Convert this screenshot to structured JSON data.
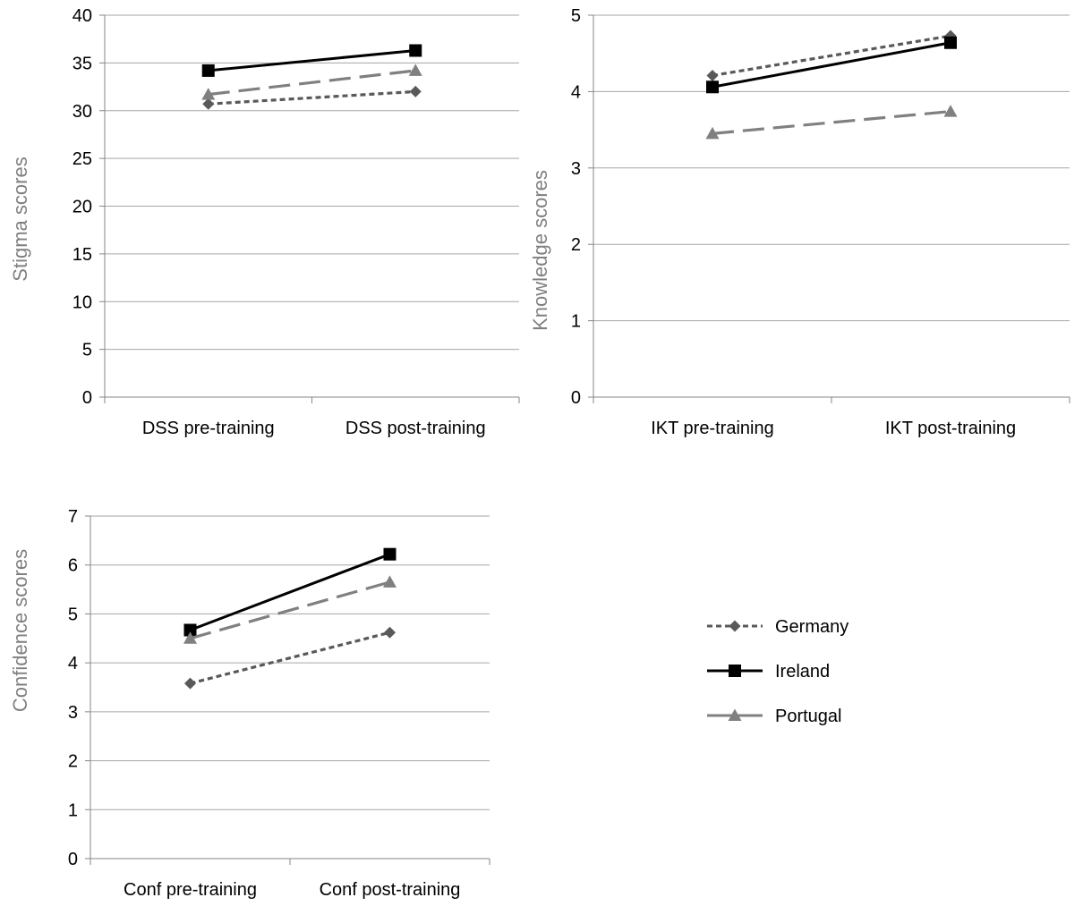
{
  "chart_data": [
    {
      "type": "line",
      "title": "",
      "xlabel": "",
      "ylabel": "Stigma scores",
      "categories": [
        "DSS  pre-training",
        "DSS post-training"
      ],
      "ylim": [
        0,
        40
      ],
      "yticks": [
        "0",
        "5",
        "10",
        "15",
        "20",
        "25",
        "30",
        "35",
        "40"
      ],
      "grid": true,
      "series": [
        {
          "name": "Germany",
          "values": [
            30.7,
            32.0
          ],
          "color": "#595959",
          "dash": "dotted",
          "marker": "diamond"
        },
        {
          "name": "Ireland",
          "values": [
            34.2,
            36.3
          ],
          "color": "#000000",
          "dash": "solid",
          "marker": "square"
        },
        {
          "name": "Portugal",
          "values": [
            31.7,
            34.2
          ],
          "color": "#808080",
          "dash": "long-dash",
          "marker": "triangle"
        }
      ]
    },
    {
      "type": "line",
      "title": "",
      "xlabel": "",
      "ylabel": "Knowledge scores",
      "categories": [
        "IKT pre-training",
        "IKT post-training"
      ],
      "ylim": [
        0,
        5
      ],
      "yticks": [
        "0",
        "1",
        "2",
        "3",
        "4",
        "5"
      ],
      "grid": true,
      "series": [
        {
          "name": "Germany",
          "values": [
            4.21,
            4.73
          ],
          "color": "#595959",
          "dash": "dotted",
          "marker": "diamond"
        },
        {
          "name": "Ireland",
          "values": [
            4.06,
            4.64
          ],
          "color": "#000000",
          "dash": "solid",
          "marker": "square"
        },
        {
          "name": "Portugal",
          "values": [
            3.45,
            3.74
          ],
          "color": "#808080",
          "dash": "long-dash",
          "marker": "triangle"
        }
      ]
    },
    {
      "type": "line",
      "title": "",
      "xlabel": "",
      "ylabel": "Confidence scores",
      "categories": [
        "Conf pre-training",
        "Conf post-training"
      ],
      "ylim": [
        0,
        7
      ],
      "yticks": [
        "0",
        "1",
        "2",
        "3",
        "4",
        "5",
        "6",
        "7"
      ],
      "grid": true,
      "series": [
        {
          "name": "Germany",
          "values": [
            3.58,
            4.62
          ],
          "color": "#595959",
          "dash": "dotted",
          "marker": "diamond"
        },
        {
          "name": "Ireland",
          "values": [
            4.67,
            6.22
          ],
          "color": "#000000",
          "dash": "solid",
          "marker": "square"
        },
        {
          "name": "Portugal",
          "values": [
            4.5,
            5.65
          ],
          "color": "#808080",
          "dash": "long-dash",
          "marker": "triangle"
        }
      ]
    }
  ],
  "legend": {
    "placement": "right",
    "items": [
      {
        "label": "Germany",
        "color": "#595959",
        "dash": "dotted",
        "marker": "diamond"
      },
      {
        "label": "Ireland",
        "color": "#000000",
        "dash": "solid",
        "marker": "square"
      },
      {
        "label": "Portugal",
        "color": "#808080",
        "dash": "long-dash",
        "marker": "triangle"
      }
    ]
  }
}
